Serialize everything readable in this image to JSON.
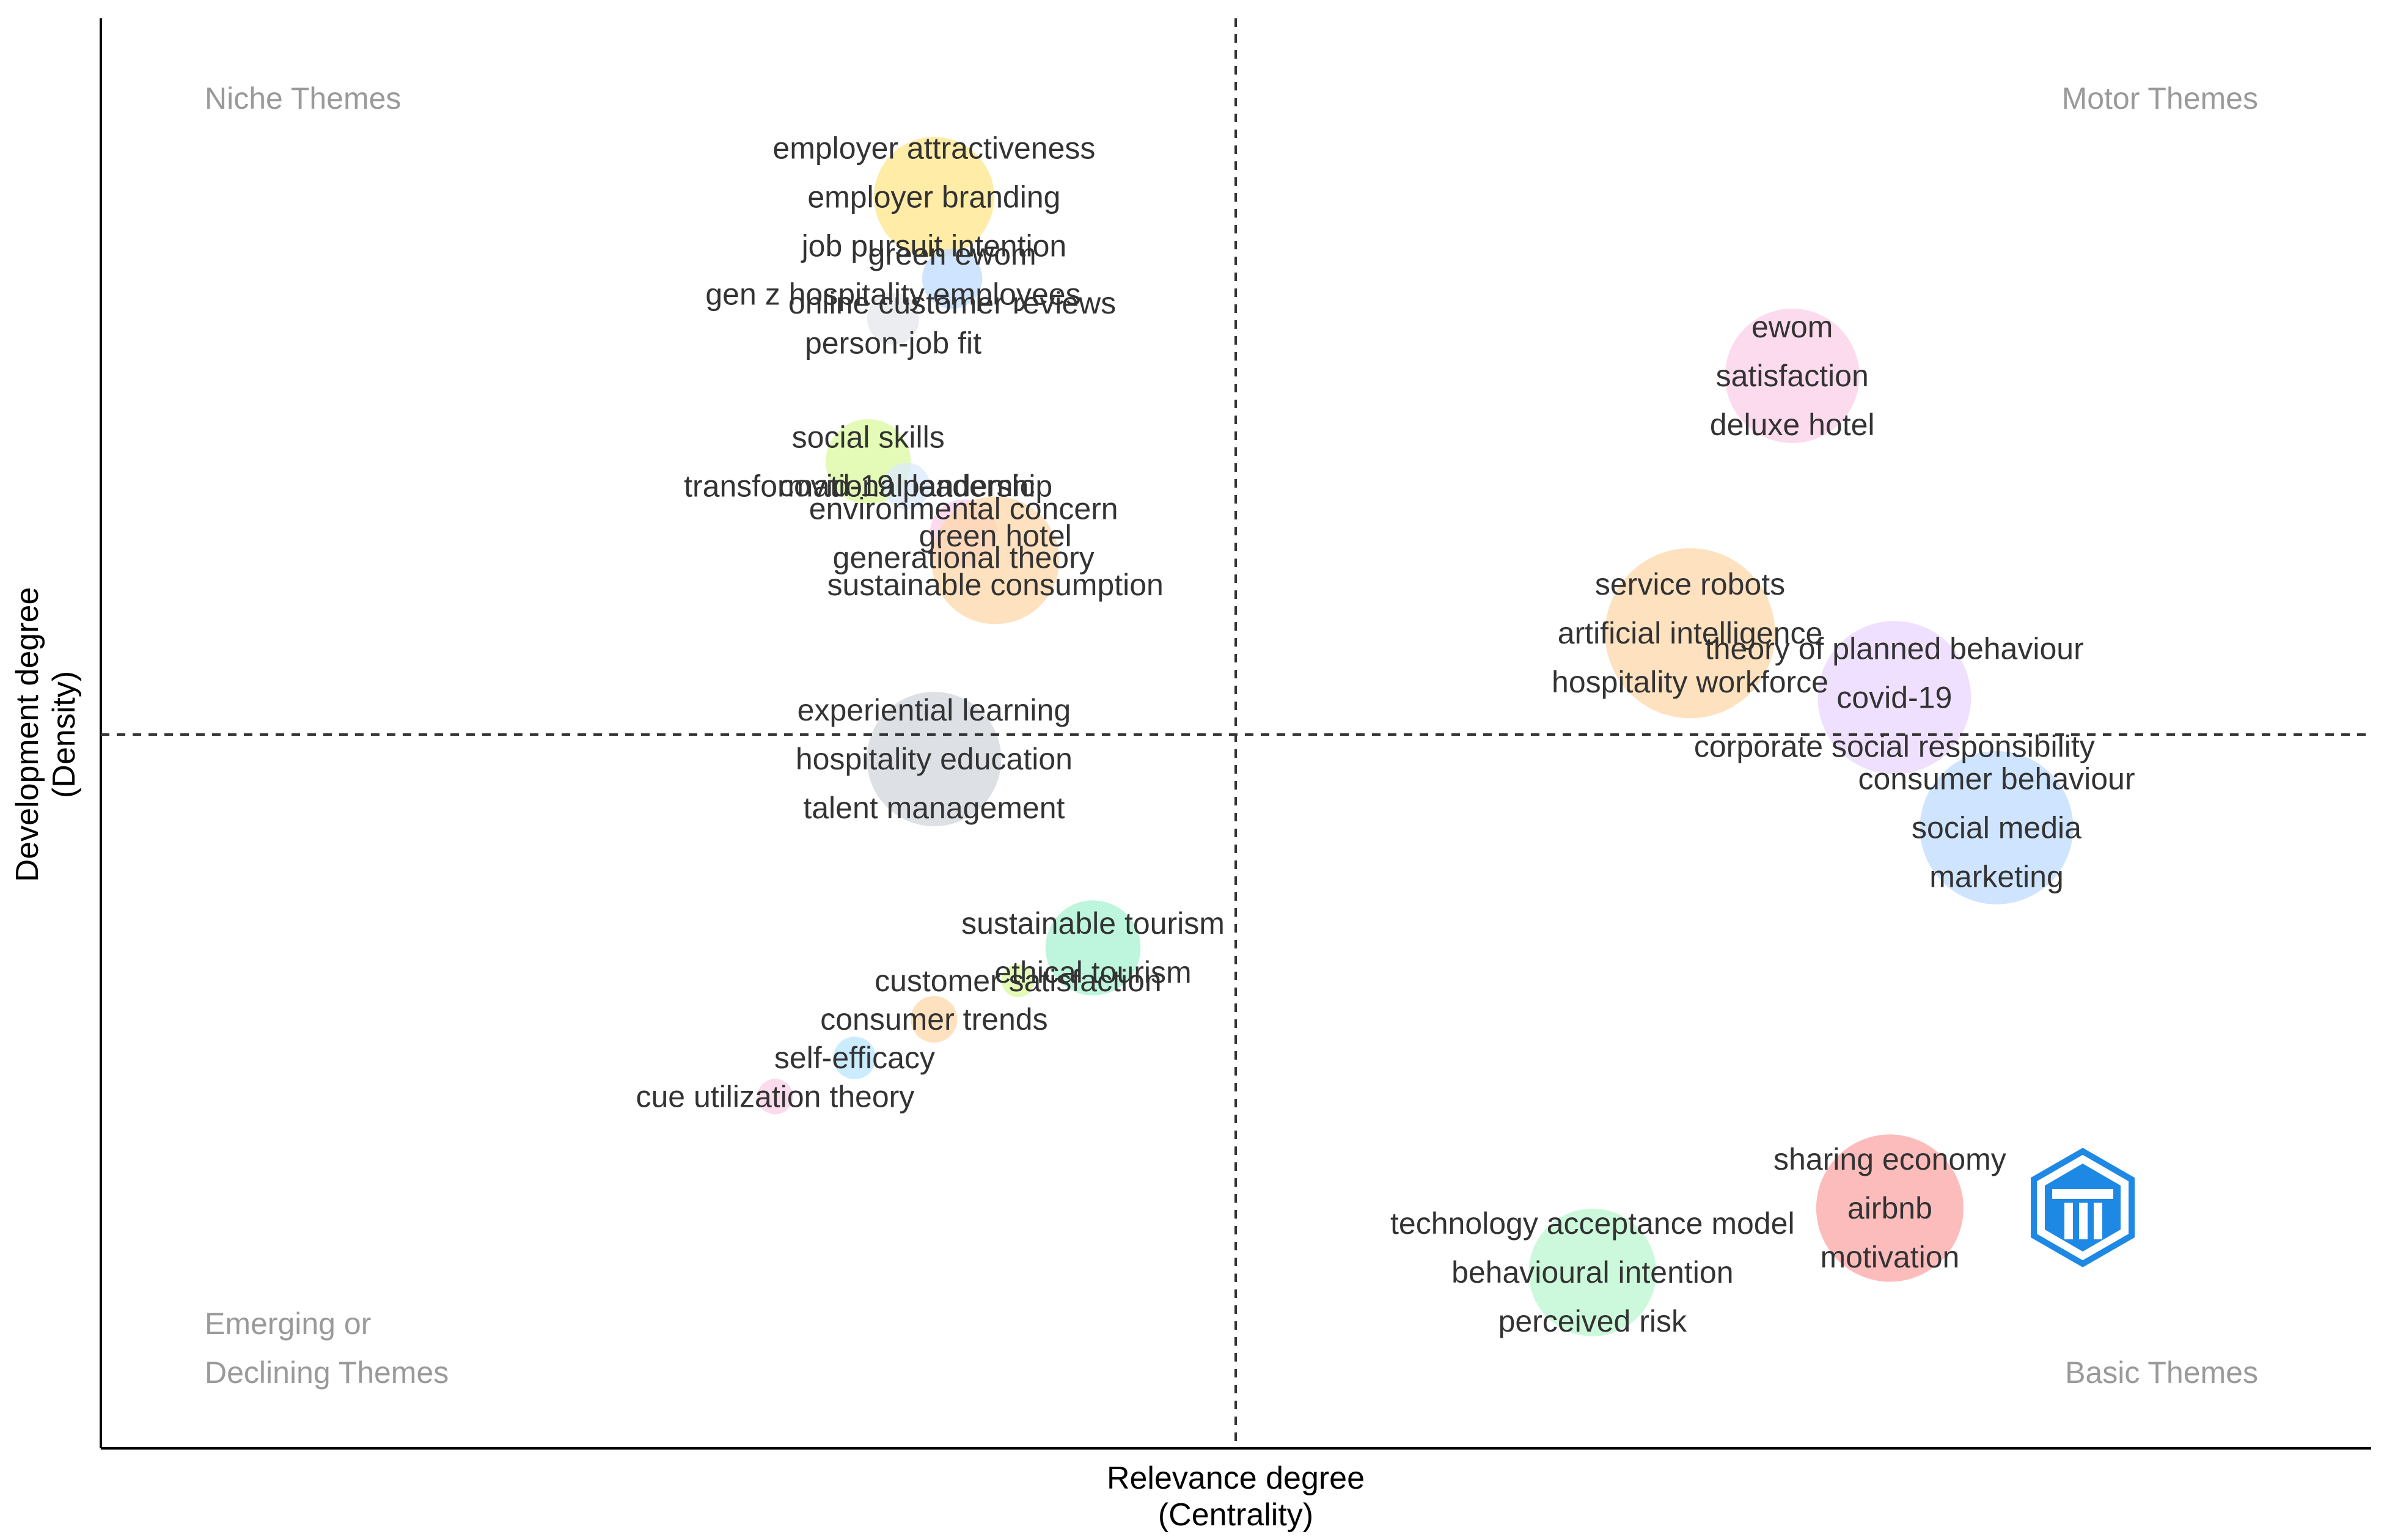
{
  "chart_data": {
    "type": "scatter",
    "title": "",
    "xlabel": "Relevance degree",
    "xlabel_sub": "(Centrality)",
    "ylabel": "Development degree",
    "ylabel_sub": "(Density)",
    "xlim": [
      0,
      1
    ],
    "ylim": [
      0,
      1
    ],
    "x_mid": 0.5,
    "y_mid": 0.5,
    "quadrants": {
      "niche": "Niche Themes",
      "motor": "Motor Themes",
      "emerging_line1": "Emerging or",
      "emerging_line2": "Declining Themes",
      "basic": "Basic Themes"
    },
    "clusters": [
      {
        "x": 0.367,
        "y": 0.875,
        "size": 0.8,
        "color": "#fde68a",
        "labels": [
          "employer attractiveness",
          "employer branding",
          "job pursuit intention"
        ]
      },
      {
        "x": 0.375,
        "y": 0.818,
        "size": 0.2,
        "color": "#bfdbfe",
        "labels": [
          "green ewom",
          "online customer reviews"
        ]
      },
      {
        "x": 0.349,
        "y": 0.79,
        "size": 0.15,
        "color": "#e5e7eb",
        "labels": [
          "gen z hospitality employees",
          "person-job fit"
        ]
      },
      {
        "x": 0.338,
        "y": 0.69,
        "size": 0.4,
        "color": "#d9f99d",
        "labels": [
          "social skills",
          "transformational leadership"
        ]
      },
      {
        "x": 0.355,
        "y": 0.673,
        "size": 0.12,
        "color": "#dbeafe",
        "labels": [
          "covid-19 pandemic"
        ]
      },
      {
        "x": 0.38,
        "y": 0.64,
        "size": 0.25,
        "color": "#fbcfe8",
        "labels": [
          "environmental concern",
          "generational theory"
        ]
      },
      {
        "x": 0.394,
        "y": 0.621,
        "size": 0.9,
        "color": "#fed7aa",
        "labels": [
          "green hotel",
          "sustainable consumption"
        ]
      },
      {
        "x": 0.367,
        "y": 0.482,
        "size": 1.0,
        "color": "#d1d5db",
        "labels": [
          "experiential learning",
          "hospitality education",
          "talent management"
        ]
      },
      {
        "x": 0.437,
        "y": 0.35,
        "size": 0.5,
        "color": "#a7f3d0",
        "labels": [
          "sustainable tourism",
          "ethical tourism"
        ]
      },
      {
        "x": 0.404,
        "y": 0.327,
        "size": 0.06,
        "color": "#d9f99d",
        "labels": [
          "customer satisfaction"
        ]
      },
      {
        "x": 0.367,
        "y": 0.3,
        "size": 0.12,
        "color": "#fed7aa",
        "labels": [
          "consumer trends"
        ]
      },
      {
        "x": 0.332,
        "y": 0.273,
        "size": 0.1,
        "color": "#bae6fd",
        "labels": [
          "self-efficacy"
        ]
      },
      {
        "x": 0.297,
        "y": 0.246,
        "size": 0.07,
        "color": "#fbcfe8",
        "labels": [
          "cue utilization theory"
        ]
      },
      {
        "x": 0.745,
        "y": 0.75,
        "size": 1.0,
        "color": "#fbcfe8",
        "labels": [
          "ewom",
          "satisfaction",
          "deluxe hotel"
        ]
      },
      {
        "x": 0.7,
        "y": 0.57,
        "size": 1.6,
        "color": "#fed7aa",
        "labels": [
          "service robots",
          "artificial intelligence",
          "hospitality workforce"
        ]
      },
      {
        "x": 0.79,
        "y": 0.525,
        "size": 1.3,
        "color": "#e9d5ff",
        "labels": [
          "theory of planned behaviour",
          "covid-19",
          "corporate social responsibility"
        ]
      },
      {
        "x": 0.835,
        "y": 0.434,
        "size": 1.3,
        "color": "#bfdbfe",
        "labels": [
          "consumer behaviour",
          "social media",
          "marketing"
        ]
      },
      {
        "x": 0.788,
        "y": 0.168,
        "size": 1.2,
        "color": "#fca5a5",
        "labels": [
          "sharing economy",
          "airbnb",
          "motivation"
        ]
      },
      {
        "x": 0.657,
        "y": 0.123,
        "size": 0.9,
        "color": "#bbf7d0",
        "labels": [
          "technology acceptance model",
          "behavioural intention",
          "perceived risk"
        ]
      }
    ]
  },
  "logo": {
    "name": "Bibliometrix",
    "color": "#1e88e5"
  }
}
